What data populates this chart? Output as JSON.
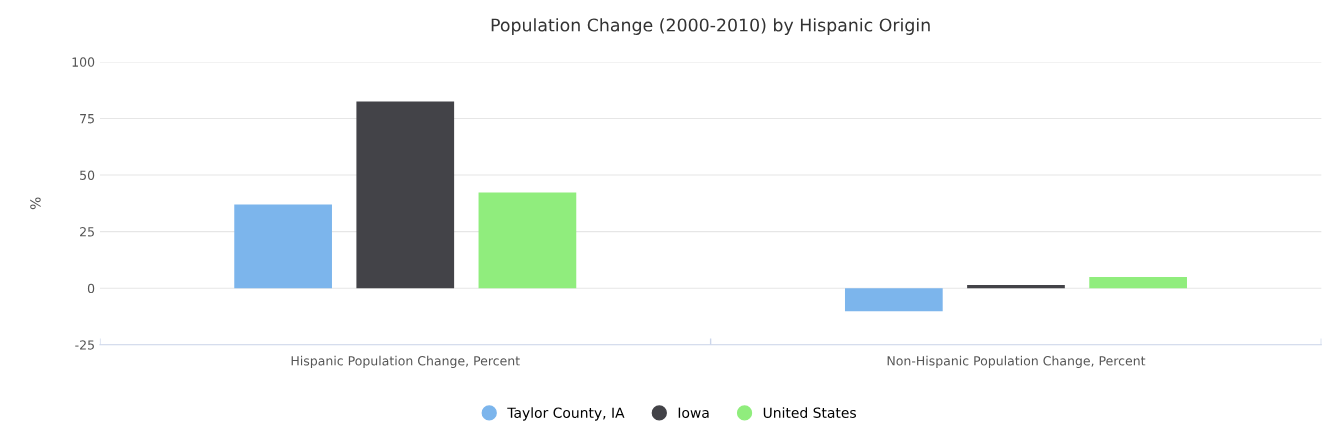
{
  "chart_data": {
    "type": "bar",
    "title": "Population Change (2000-2010) by Hispanic Origin",
    "ylabel": "%",
    "categories": [
      "Hispanic Population Change, Percent",
      "Non-Hispanic Population Change, Percent"
    ],
    "series": [
      {
        "name": "Taylor County, IA",
        "color": "#7cb5ec",
        "values": [
          37.0,
          -10.2
        ]
      },
      {
        "name": "Iowa",
        "color": "#434348",
        "values": [
          82.5,
          1.4
        ]
      },
      {
        "name": "United States",
        "color": "#90ed7d",
        "values": [
          42.3,
          4.9
        ]
      }
    ],
    "ylim": [
      -25,
      100
    ],
    "yticks": [
      -25,
      0,
      25,
      50,
      75,
      100
    ],
    "grid": "y",
    "legend": "bottom"
  }
}
